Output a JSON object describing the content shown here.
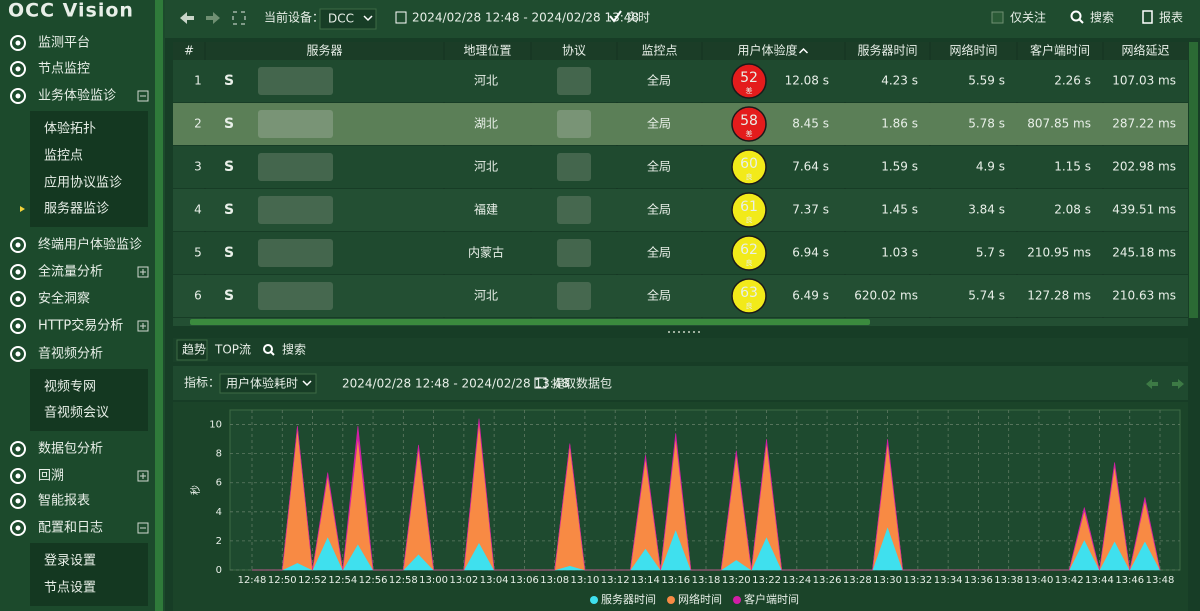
{
  "sidebar": {
    "logo": "OCC Vision",
    "menu": [
      {
        "label": "监测平台"
      },
      {
        "label": "节点监控"
      },
      {
        "label": "业务体验监诊",
        "expander": "open",
        "children": [
          {
            "label": "体验拓扑"
          },
          {
            "label": "监控点"
          },
          {
            "label": "应用协议监诊"
          },
          {
            "label": "服务器监诊",
            "active": true
          }
        ]
      },
      {
        "label": "终端用户体验监诊"
      },
      {
        "label": "全流量分析",
        "expander": "closed"
      },
      {
        "label": "安全洞察"
      },
      {
        "label": "HTTP交易分析",
        "expander": "closed"
      },
      {
        "label": "音视频分析",
        "children": [
          {
            "label": "视频专网"
          },
          {
            "label": "音视频会议"
          }
        ]
      },
      {
        "label": "数据包分析"
      },
      {
        "label": "回溯",
        "expander": "closed"
      },
      {
        "label": "智能报表"
      },
      {
        "label": "配置和日志",
        "expander": "open",
        "children": [
          {
            "label": "登录设置"
          },
          {
            "label": "节点设置"
          }
        ]
      }
    ]
  },
  "toolbar": {
    "device_label": "当前设备：",
    "device": "DCC",
    "time_range": "2024/02/28 12:48 - 2024/02/28 13:48",
    "realtime": "实时",
    "follow_only": "仅关注",
    "search": "搜索",
    "report": "报表"
  },
  "table": {
    "columns": [
      "#",
      "服务器",
      "地理位置",
      "协议",
      "监控点",
      "用户体验度",
      "服务器时间",
      "网络时间",
      "客户端时间",
      "网络延迟"
    ],
    "sort_column": 5,
    "rows": [
      {
        "index": 1,
        "icon": "S",
        "location": "河北",
        "monitor": "全局",
        "score": 52,
        "grade": "差",
        "score_color": "#e41c1c",
        "experience": "12.08 s",
        "server_time": "4.23 s",
        "network_time": "5.59 s",
        "client_time": "2.26 s",
        "latency": "107.03 ms"
      },
      {
        "index": 2,
        "icon": "S",
        "location": "湖北",
        "monitor": "全局",
        "score": 58,
        "grade": "差",
        "score_color": "#e41c1c",
        "experience": "8.45 s",
        "server_time": "1.86 s",
        "network_time": "5.78 s",
        "client_time": "807.85 ms",
        "latency": "287.22 ms",
        "selected": true
      },
      {
        "index": 3,
        "icon": "S",
        "location": "河北",
        "monitor": "全局",
        "score": 60,
        "grade": "良",
        "score_color": "#f2ea1a",
        "experience": "7.64 s",
        "server_time": "1.59 s",
        "network_time": "4.9 s",
        "client_time": "1.15 s",
        "latency": "202.98 ms"
      },
      {
        "index": 4,
        "icon": "S",
        "location": "福建",
        "monitor": "全局",
        "score": 61,
        "grade": "良",
        "score_color": "#f2ea1a",
        "experience": "7.37 s",
        "server_time": "1.45 s",
        "network_time": "3.84 s",
        "client_time": "2.08 s",
        "latency": "439.51 ms"
      },
      {
        "index": 5,
        "icon": "S",
        "location": "内蒙古",
        "monitor": "全局",
        "score": 62,
        "grade": "良",
        "score_color": "#f2ea1a",
        "experience": "6.94 s",
        "server_time": "1.03 s",
        "network_time": "5.7 s",
        "client_time": "210.95 ms",
        "latency": "245.18 ms"
      },
      {
        "index": 6,
        "icon": "S",
        "location": "河北",
        "monitor": "全局",
        "score": 63,
        "grade": "良",
        "score_color": "#f2ea1a",
        "experience": "6.49 s",
        "server_time": "620.02 ms",
        "network_time": "5.74 s",
        "client_time": "127.28 ms",
        "latency": "210.63 ms"
      }
    ]
  },
  "tabs": [
    {
      "label": "趋势",
      "active": true
    },
    {
      "label": "TOP流"
    },
    {
      "label": "搜索"
    }
  ],
  "chart_toolbar": {
    "metric_label": "指标：",
    "metric": "用户体验耗时",
    "time_range": "2024/02/28 12:48 - 2024/02/28 13:48",
    "capture": "提取数据包"
  },
  "chart_data": {
    "type": "stacked_area",
    "y_label": "秒",
    "categories": [
      "12:48",
      null,
      "12:50",
      null,
      "12:52",
      null,
      "12:54",
      null,
      "12:56",
      null,
      "12:58",
      null,
      "13:00",
      null,
      "13:02",
      null,
      "13:04",
      null,
      "13:06",
      null,
      "13:08",
      null,
      "13:10",
      null,
      "13:12",
      null,
      "13:14",
      null,
      "13:16",
      null,
      "13:18",
      null,
      "13:20",
      null,
      "13:22",
      null,
      "13:24",
      null,
      "13:26",
      null,
      "13:28",
      null,
      "13:30",
      null,
      "13:32",
      null,
      "13:34",
      null,
      "13:36",
      null,
      "13:38",
      null,
      "13:40",
      null,
      "13:42",
      null,
      "13:44",
      null,
      "13:46",
      null,
      "13:48"
    ],
    "series": [
      {
        "name": "服务器时间",
        "color": "#3fe0ee",
        "values": [
          0,
          0,
          0,
          0.5,
          0,
          2.3,
          0,
          1.8,
          0,
          0,
          0,
          1.1,
          0,
          0,
          0,
          1.9,
          0,
          0,
          0,
          0,
          0,
          0.3,
          0,
          0,
          0,
          0,
          1.5,
          0,
          2.8,
          0,
          0,
          0,
          0.7,
          0,
          2.3,
          0,
          0,
          0,
          0,
          0,
          0,
          0,
          3.0,
          0,
          0,
          0,
          0,
          0,
          0,
          0,
          0,
          0,
          0,
          0,
          0,
          2.1,
          0,
          2.0,
          0,
          2.0,
          0
        ]
      },
      {
        "name": "网络时间",
        "color": "#f88a44",
        "values": [
          0,
          0,
          0,
          9.3,
          0,
          4.2,
          0,
          7.3,
          0,
          0,
          0,
          7.3,
          0,
          0,
          0,
          8.3,
          0,
          0,
          0,
          0,
          0,
          8.3,
          0,
          0,
          0,
          0,
          6.2,
          0,
          6.3,
          0,
          0,
          0,
          7.3,
          0,
          6.5,
          0,
          0,
          0,
          0,
          0,
          0,
          0,
          5.8,
          0,
          0,
          0,
          0,
          0,
          0,
          0,
          0,
          0,
          0,
          0,
          0,
          2.0,
          0,
          5.2,
          0,
          2.8,
          0
        ]
      },
      {
        "name": "客户端时间",
        "color": "#d21ea6",
        "values": [
          0,
          0,
          0,
          0.1,
          0,
          0.2,
          0,
          0.8,
          0,
          0,
          0,
          0.2,
          0,
          0,
          0,
          0.2,
          0,
          0,
          0,
          0,
          0,
          0.1,
          0,
          0,
          0,
          0,
          0.2,
          0,
          0.3,
          0,
          0,
          0,
          0.2,
          0,
          0.2,
          0,
          0,
          0,
          0,
          0,
          0,
          0,
          0.2,
          0,
          0,
          0,
          0,
          0,
          0,
          0,
          0,
          0,
          0,
          0,
          0,
          0.2,
          0,
          0.2,
          0,
          0.2,
          0
        ]
      }
    ],
    "ylim": [
      0,
      11
    ],
    "yticks": [
      0,
      2,
      4,
      6,
      8,
      10
    ],
    "grid": true,
    "legend": "bottom"
  }
}
